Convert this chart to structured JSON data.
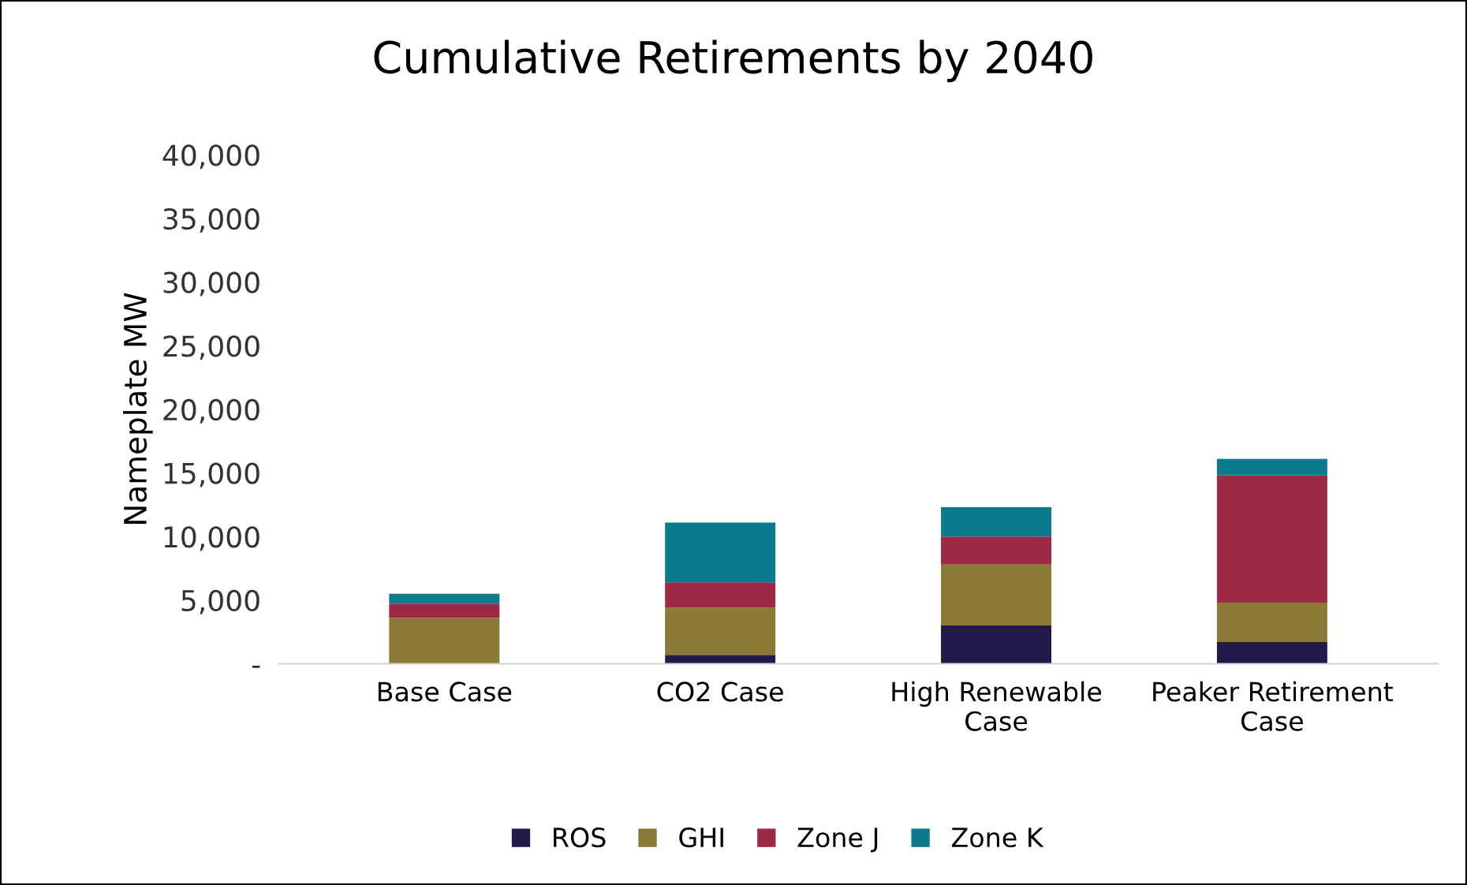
{
  "chart_data": {
    "type": "bar",
    "title": "Cumulative Retirements by 2040",
    "ylabel": "Nameplate MW",
    "categories": [
      "Base Case",
      "CO2 Case",
      "High Renewable Case",
      "Peaker Retirement Case"
    ],
    "stacked": true,
    "series": [
      {
        "name": "ROS",
        "color": "#23194a",
        "values": [
          0,
          700,
          3000,
          1700
        ]
      },
      {
        "name": "GHI",
        "color": "#8b7a35",
        "values": [
          3600,
          3700,
          4800,
          3100
        ]
      },
      {
        "name": "Zone J",
        "color": "#9e2944",
        "values": [
          1100,
          2000,
          2200,
          10000
        ]
      },
      {
        "name": "Zone K",
        "color": "#0b7a8c",
        "values": [
          800,
          4700,
          2300,
          1300
        ]
      }
    ],
    "ylim": [
      0,
      40000
    ],
    "yticks": [
      {
        "value": 0,
        "label": "-"
      },
      {
        "value": 5000,
        "label": "5,000"
      },
      {
        "value": 10000,
        "label": "10,000"
      },
      {
        "value": 15000,
        "label": "15,000"
      },
      {
        "value": 20000,
        "label": "20,000"
      },
      {
        "value": 25000,
        "label": "25,000"
      },
      {
        "value": 30000,
        "label": "30,000"
      },
      {
        "value": 35000,
        "label": "35,000"
      },
      {
        "value": 40000,
        "label": "40,000"
      }
    ],
    "grid": false,
    "legend": "bottom"
  }
}
